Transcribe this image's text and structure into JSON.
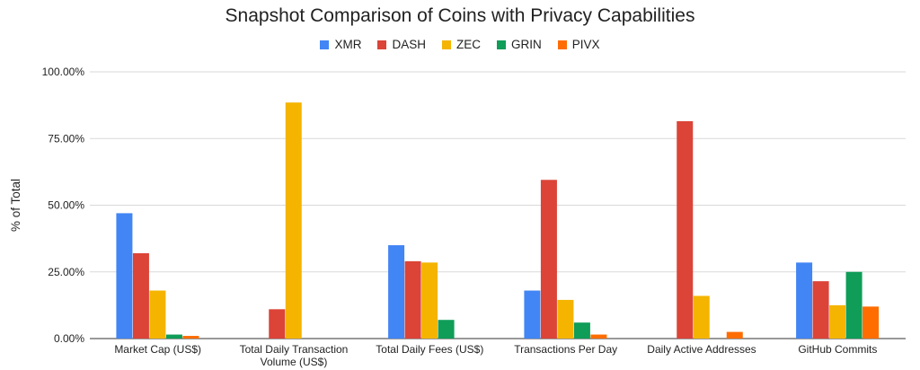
{
  "chart_data": {
    "type": "bar",
    "title": "Snapshot Comparison of Coins with Privacy Capabilities",
    "ylabel": "% of Total",
    "xlabel": "",
    "ylim": [
      0,
      100
    ],
    "y_ticks": [
      "0.00%",
      "25.00%",
      "50.00%",
      "75.00%",
      "100.00%"
    ],
    "y_tick_values": [
      0,
      25,
      50,
      75,
      100
    ],
    "grid": true,
    "legend_position": "top-center",
    "categories": [
      [
        "Market Cap (US$)"
      ],
      [
        "Total Daily Transaction",
        "Volume (US$)"
      ],
      [
        "Total Daily Fees (US$)"
      ],
      [
        "Transactions Per Day"
      ],
      [
        "Daily Active Addresses"
      ],
      [
        "GitHub Commits"
      ]
    ],
    "series": [
      {
        "name": "XMR",
        "color": "#4285f4",
        "values": [
          47.0,
          0.0,
          35.0,
          18.0,
          0.0,
          28.5
        ]
      },
      {
        "name": "DASH",
        "color": "#db4437",
        "values": [
          32.0,
          11.0,
          29.0,
          59.5,
          81.5,
          21.5
        ]
      },
      {
        "name": "ZEC",
        "color": "#f4b400",
        "values": [
          18.0,
          88.5,
          28.5,
          14.5,
          16.0,
          12.5
        ]
      },
      {
        "name": "GRIN",
        "color": "#0f9d58",
        "values": [
          1.5,
          0.0,
          7.0,
          6.0,
          0.0,
          25.0
        ]
      },
      {
        "name": "PIVX",
        "color": "#ff6d01",
        "values": [
          1.0,
          0.0,
          0.0,
          1.5,
          2.5,
          12.0
        ]
      }
    ]
  }
}
